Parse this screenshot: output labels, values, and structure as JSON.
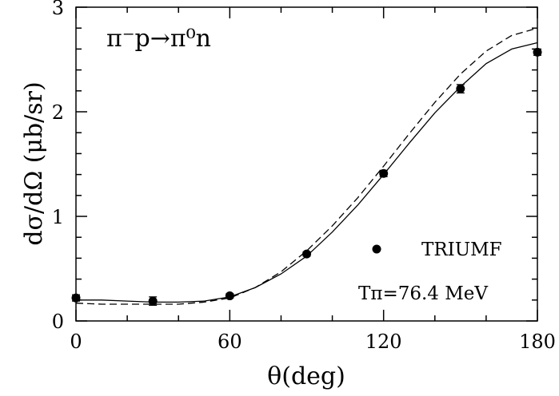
{
  "chart_data": {
    "type": "scatter",
    "title": "",
    "xlabel": "θ(deg)",
    "ylabel": "dσ/dΩ (μb/sr)",
    "xlim": [
      0,
      180
    ],
    "ylim": [
      0,
      3
    ],
    "xticks": [
      "0",
      "60",
      "120",
      "180"
    ],
    "yticks": [
      "0",
      "1",
      "2",
      "3"
    ],
    "grid": false,
    "annotations": {
      "reaction": "π⁻p→π⁰n",
      "energy": "Tπ=76.4 MeV"
    },
    "legend": [
      {
        "label": "TRIUMF",
        "marker": "filled-circle"
      }
    ],
    "series": [
      {
        "name": "TRIUMF",
        "kind": "points",
        "x": [
          0,
          30,
          60,
          90,
          120,
          150,
          180
        ],
        "y": [
          0.22,
          0.19,
          0.24,
          0.64,
          1.41,
          2.22,
          2.57
        ],
        "err": [
          0.03,
          0.04,
          0.02,
          0.02,
          0.03,
          0.04,
          0.03
        ]
      },
      {
        "kind": "solid-line",
        "x": [
          0,
          10,
          20,
          30,
          40,
          50,
          60,
          70,
          80,
          90,
          100,
          110,
          120,
          130,
          140,
          150,
          160,
          170,
          180
        ],
        "y": [
          0.2,
          0.2,
          0.19,
          0.18,
          0.18,
          0.19,
          0.23,
          0.32,
          0.45,
          0.62,
          0.85,
          1.11,
          1.4,
          1.7,
          1.99,
          2.24,
          2.46,
          2.6,
          2.66
        ]
      },
      {
        "kind": "dashed-line",
        "x": [
          0,
          10,
          20,
          30,
          40,
          50,
          60,
          70,
          80,
          90,
          100,
          110,
          120,
          130,
          140,
          150,
          160,
          170,
          180
        ],
        "y": [
          0.17,
          0.16,
          0.16,
          0.16,
          0.16,
          0.18,
          0.22,
          0.32,
          0.47,
          0.67,
          0.91,
          1.18,
          1.48,
          1.79,
          2.09,
          2.36,
          2.58,
          2.73,
          2.8
        ]
      }
    ]
  }
}
